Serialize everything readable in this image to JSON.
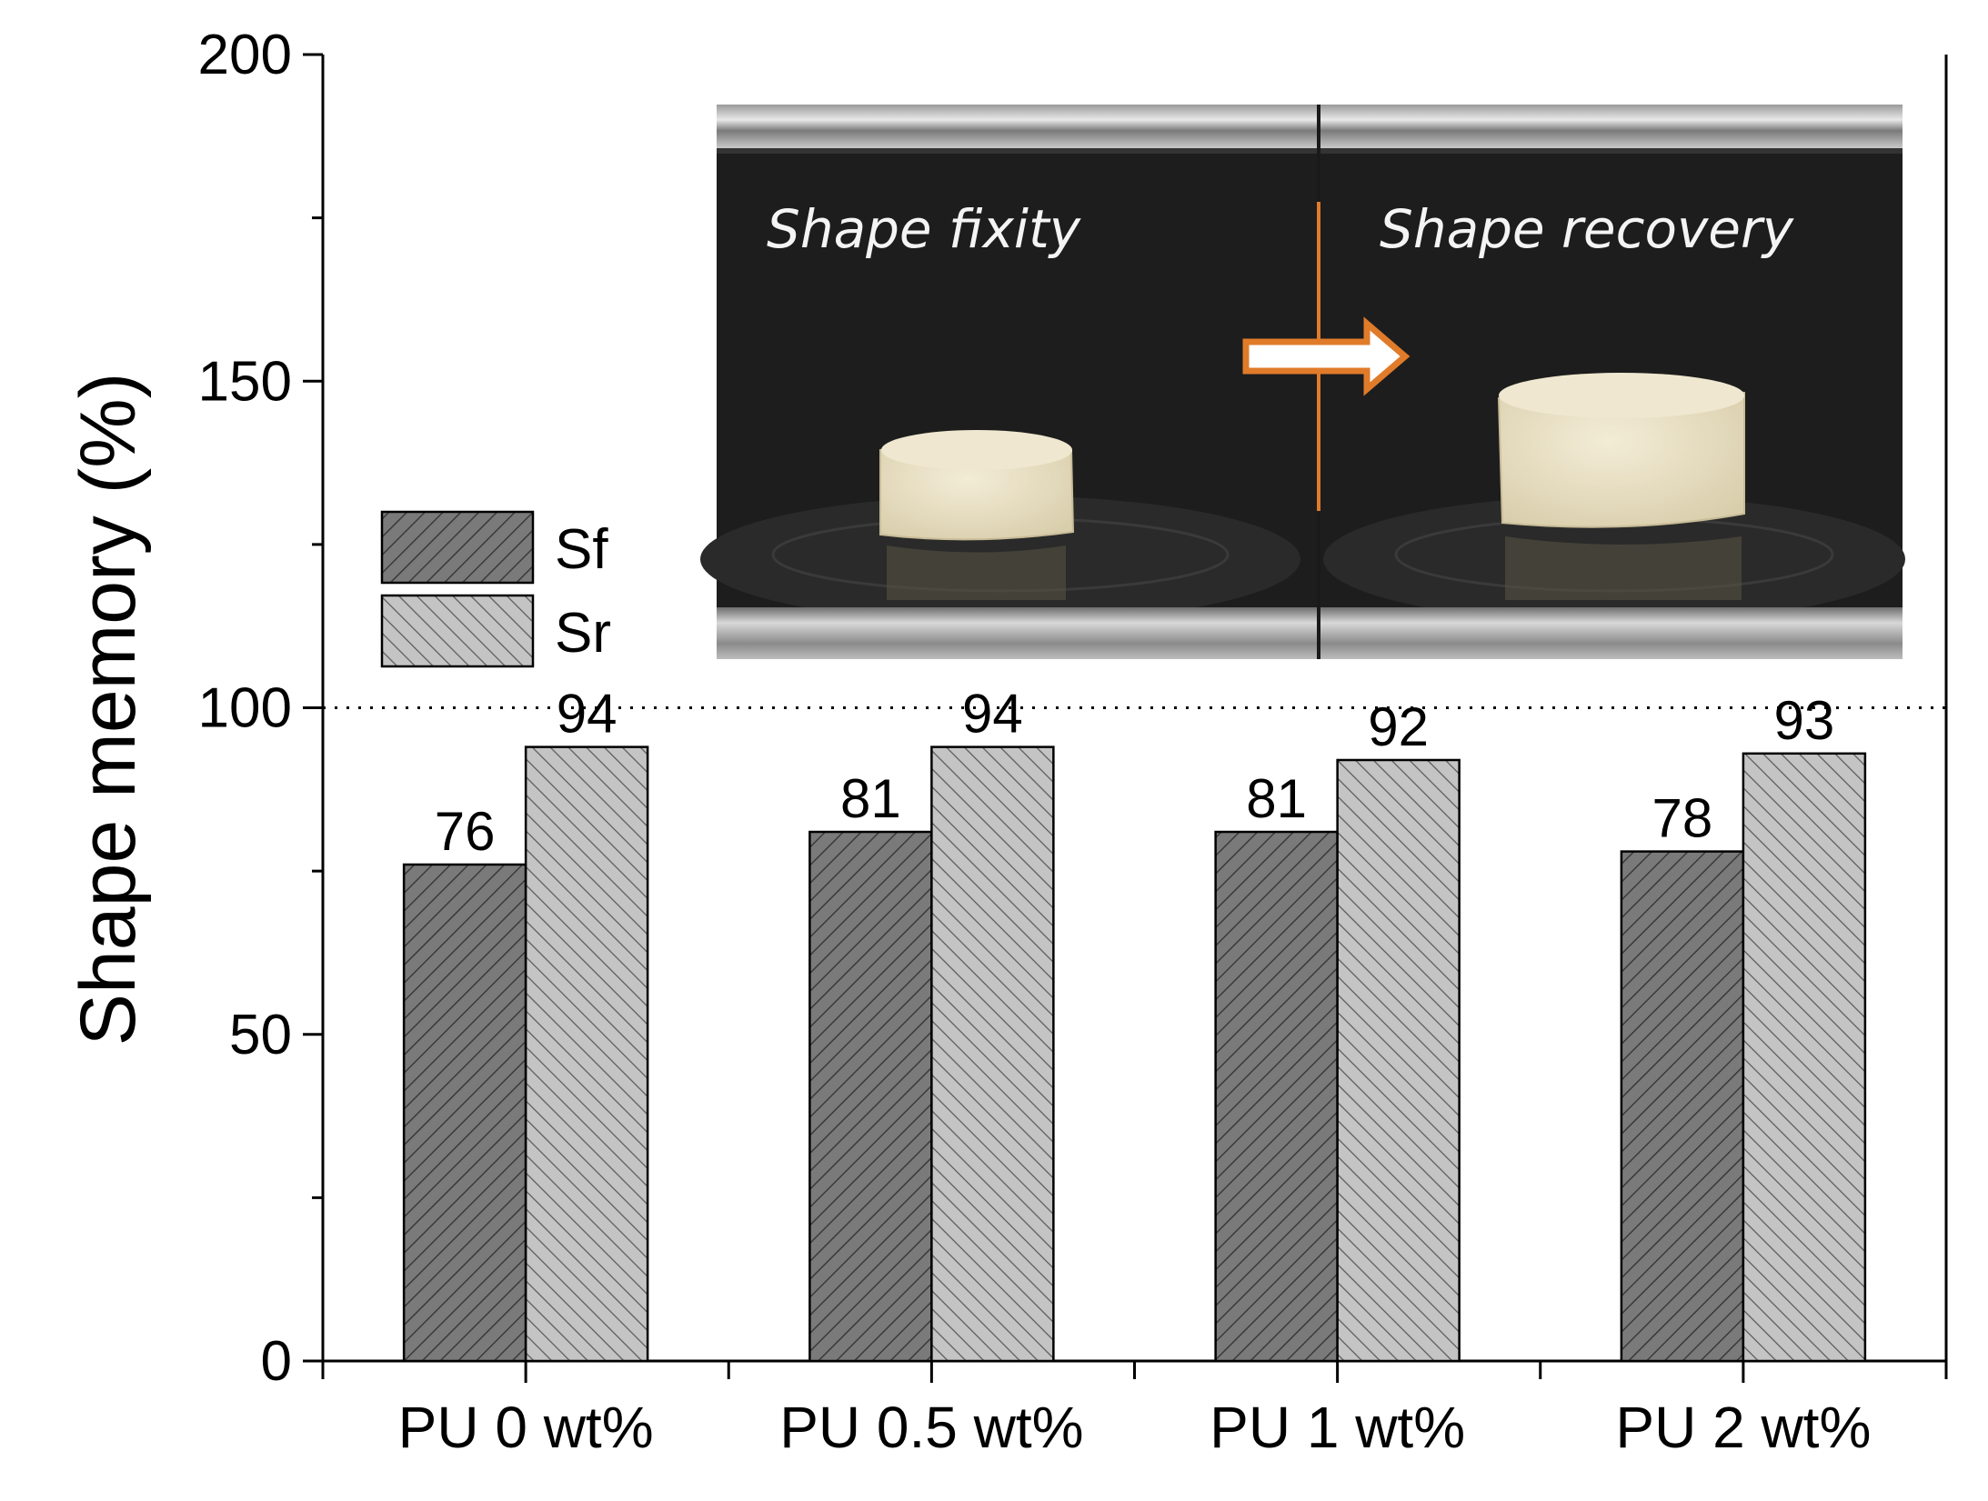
{
  "chart_data": {
    "type": "bar",
    "title": "",
    "xlabel": "",
    "ylabel": "Shape memory (%)",
    "ylim": [
      0,
      200
    ],
    "yticks": [
      0,
      50,
      100,
      150,
      200
    ],
    "minor_tick_step": 25,
    "reference_line": 100,
    "categories": [
      "PU 0 wt%",
      "PU 0.5 wt%",
      "PU 1 wt%",
      "PU 2 wt%"
    ],
    "series": [
      {
        "name": "Sf",
        "values": [
          76,
          81,
          81,
          78
        ],
        "color": "#7a7a7a"
      },
      {
        "name": "Sr",
        "values": [
          94,
          94,
          92,
          93
        ],
        "color": "#c4c4c4"
      }
    ],
    "legend_position": "left, middle",
    "data_labels": true
  },
  "inset_photo": {
    "left_caption": "Shape fixity",
    "right_caption": "Shape recovery",
    "divider_color": "#e07b2a",
    "arrow_color": "#e07b2a"
  }
}
